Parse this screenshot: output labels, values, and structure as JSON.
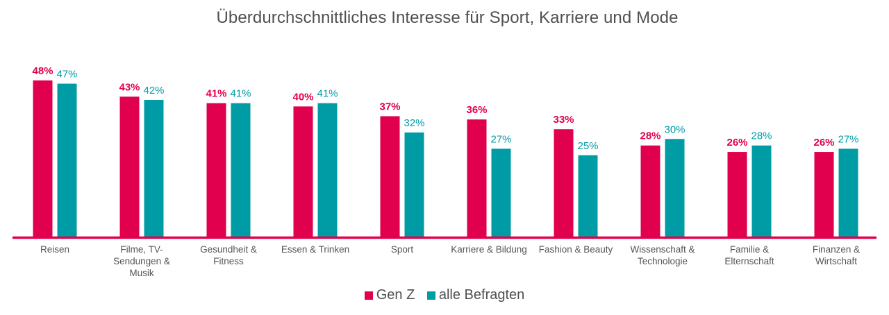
{
  "chart_data": {
    "type": "bar",
    "title": "Überdurchschnittliches Interesse für Sport, Karriere und Mode",
    "xlabel": "",
    "ylabel": "",
    "ylim": [
      0,
      50
    ],
    "grid": false,
    "legend_position": "bottom-center",
    "value_suffix": "%",
    "categories": [
      [
        "Reisen"
      ],
      [
        "Filme, TV-",
        "Sendungen &",
        "Musik"
      ],
      [
        "Gesundheit &",
        "Fitness"
      ],
      [
        "Essen & Trinken"
      ],
      [
        "Sport"
      ],
      [
        "Karriere & Bildung"
      ],
      [
        "Fashion & Beauty"
      ],
      [
        "Wissenschaft &",
        "Technologie"
      ],
      [
        "Familie &",
        "Elternschaft"
      ],
      [
        "Finanzen &",
        "Wirtschaft"
      ]
    ],
    "series": [
      {
        "name": "Gen Z",
        "color": "#e0004d",
        "label_bold": true,
        "values": [
          48,
          43,
          41,
          40,
          37,
          36,
          33,
          28,
          26,
          26
        ]
      },
      {
        "name": "alle Befragten",
        "color": "#009ca6",
        "label_bold": false,
        "values": [
          47,
          42,
          41,
          41,
          32,
          27,
          25,
          30,
          28,
          27
        ]
      }
    ],
    "axis_color": "#e0004d",
    "label_color": "#555555"
  }
}
